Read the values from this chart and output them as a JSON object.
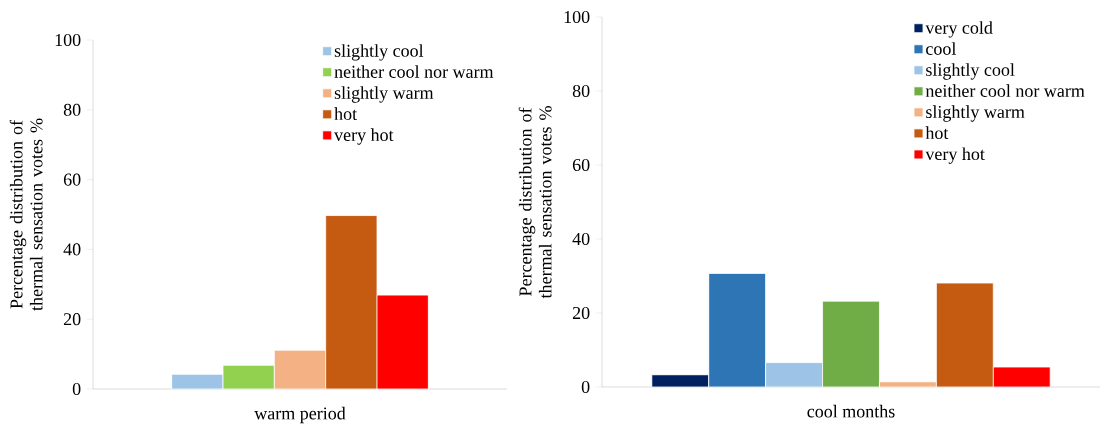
{
  "chart_data": [
    {
      "type": "bar",
      "ylabel": "Percentage distribution of thermal sensation votes %",
      "categories": [
        "warm period"
      ],
      "ylim": [
        0,
        100
      ],
      "yticks": [
        0,
        20,
        40,
        60,
        80,
        100
      ],
      "legend": "top right",
      "series": [
        {
          "name": "slightly cool",
          "color": "#9dc3e6",
          "values": [
            4.2
          ]
        },
        {
          "name": "neither cool nor warm",
          "color": "#92d050",
          "values": [
            6.8
          ]
        },
        {
          "name": "slightly warm",
          "color": "#f4b183",
          "values": [
            11.1
          ]
        },
        {
          "name": "hot",
          "color": "#c55a11",
          "values": [
            49.7
          ]
        },
        {
          "name": "very hot",
          "color": "#ff0000",
          "values": [
            26.9
          ]
        }
      ]
    },
    {
      "type": "bar",
      "ylabel": "Percentage distribution of thermal sensation votes %",
      "categories": [
        "cool months"
      ],
      "ylim": [
        0,
        100
      ],
      "yticks": [
        0,
        20,
        40,
        60,
        80,
        100
      ],
      "legend": "top right",
      "series": [
        {
          "name": "very cold",
          "color": "#002060",
          "values": [
            3.3
          ]
        },
        {
          "name": "cool",
          "color": "#2e75b6",
          "values": [
            30.7
          ]
        },
        {
          "name": "slightly cool",
          "color": "#9dc3e6",
          "values": [
            6.6
          ]
        },
        {
          "name": "neither cool nor warm",
          "color": "#70ad47",
          "values": [
            23.2
          ]
        },
        {
          "name": "slightly warm",
          "color": "#f4b183",
          "values": [
            1.4
          ]
        },
        {
          "name": "hot",
          "color": "#c55a11",
          "values": [
            28.1
          ]
        },
        {
          "name": "very hot",
          "color": "#ff0000",
          "values": [
            5.4
          ]
        }
      ]
    }
  ]
}
